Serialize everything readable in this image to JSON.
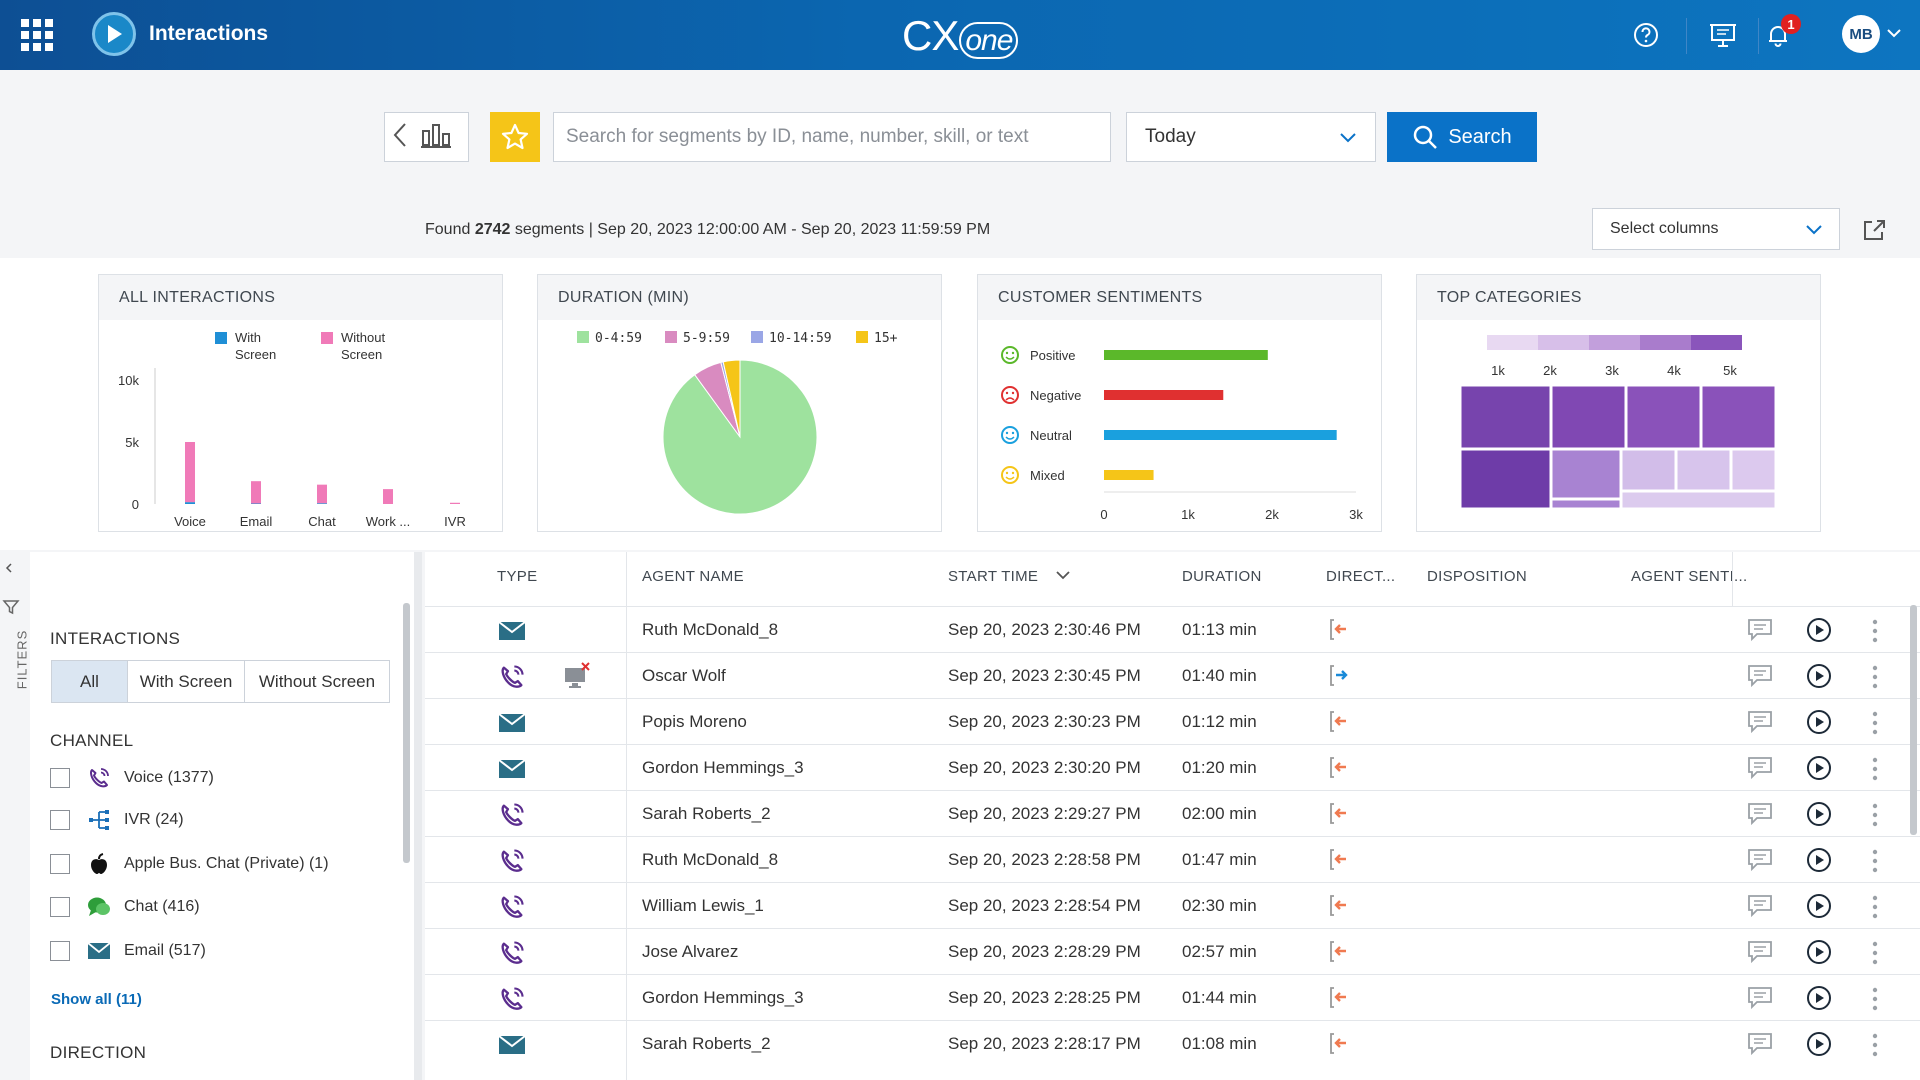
{
  "header": {
    "app_title": "Interactions",
    "brand": "CX",
    "brand_suffix": "one",
    "notification_count": "1",
    "user_initials": "MB"
  },
  "toolbar": {
    "search_placeholder": "Search for segments by ID, name, number, skill, or text",
    "date_range": "Today",
    "search_label": "Search"
  },
  "results": {
    "prefix": "Found",
    "count": "2742",
    "suffix": "segments | Sep 20, 2023 12:00:00 AM - Sep 20, 2023 11:59:59 PM",
    "select_columns": "Select columns"
  },
  "cards": {
    "all_interactions": {
      "title": "ALL INTERACTIONS",
      "chart_data": {
        "type": "bar",
        "categories": [
          "Voice",
          "Email",
          "Chat",
          "Work ...",
          "IVR"
        ],
        "series": [
          {
            "name": "With Screen",
            "values": [
              150,
              40,
              60,
              0,
              0
            ]
          },
          {
            "name": "Without Screen",
            "values": [
              4850,
              1800,
              1500,
              1200,
              100
            ]
          }
        ],
        "legend_with": [
          "With",
          "Screen"
        ],
        "legend_without": [
          "Without",
          "Screen"
        ],
        "y_ticks": [
          "10k",
          "5k",
          "0"
        ],
        "ylim": [
          0,
          10000
        ]
      }
    },
    "duration": {
      "title": "DURATION (MIN)",
      "chart_data": {
        "type": "pie",
        "labels": [
          "0-4:59",
          "5-9:59",
          "10-14:59",
          "15+"
        ],
        "values": [
          90,
          6,
          0.5,
          3.5
        ]
      }
    },
    "sentiments": {
      "title": "CUSTOMER SENTIMENTS",
      "chart_data": {
        "type": "bar",
        "orientation": "horizontal",
        "categories": [
          "Positive",
          "Negative",
          "Neutral",
          "Mixed"
        ],
        "values": [
          1950,
          1420,
          2770,
          590
        ],
        "x_ticks": [
          "0",
          "1k",
          "2k",
          "3k"
        ],
        "xlim": [
          0,
          3000
        ]
      }
    },
    "top_categories": {
      "title": "TOP CATEGORIES",
      "scale": [
        "1k",
        "2k",
        "3k",
        "4k",
        "5k"
      ]
    }
  },
  "filters": {
    "side_label": "FILTERS",
    "interactions_title": "INTERACTIONS",
    "seg_all": "All",
    "seg_with": "With Screen",
    "seg_without": "Without Screen",
    "channel_title": "CHANNEL",
    "channels": [
      {
        "label": "Voice (1377)",
        "icon": "phone-icon"
      },
      {
        "label": "IVR (24)",
        "icon": "ivr-icon"
      },
      {
        "label": "Apple Bus. Chat (Private) (1)",
        "icon": "apple-icon"
      },
      {
        "label": "Chat (416)",
        "icon": "chat-icon"
      },
      {
        "label": "Email (517)",
        "icon": "email-icon"
      }
    ],
    "show_all": "Show all (11)",
    "direction_title": "DIRECTION"
  },
  "table": {
    "columns": {
      "type": "TYPE",
      "agent": "AGENT NAME",
      "start": "START TIME",
      "duration": "DURATION",
      "direction": "DIRECT...",
      "disposition": "DISPOSITION",
      "agent_sentiment": "AGENT SENTI..."
    },
    "rows": [
      {
        "type": "email",
        "agent": "Ruth McDonald_8",
        "start": "Sep 20, 2023 2:30:46 PM",
        "duration": "01:13 min",
        "direction": "in"
      },
      {
        "type": "voice",
        "agent": "Oscar Wolf",
        "start": "Sep 20, 2023 2:30:45 PM",
        "duration": "01:40 min",
        "direction": "out"
      },
      {
        "type": "email",
        "agent": "Popis Moreno",
        "start": "Sep 20, 2023 2:30:23 PM",
        "duration": "01:12 min",
        "direction": "in"
      },
      {
        "type": "email",
        "agent": "Gordon Hemmings_3",
        "start": "Sep 20, 2023 2:30:20 PM",
        "duration": "01:20 min",
        "direction": "in"
      },
      {
        "type": "voice",
        "agent": "Sarah Roberts_2",
        "start": "Sep 20, 2023 2:29:27 PM",
        "duration": "02:00 min",
        "direction": "in"
      },
      {
        "type": "voice",
        "agent": "Ruth McDonald_8",
        "start": "Sep 20, 2023 2:28:58 PM",
        "duration": "01:47 min",
        "direction": "in"
      },
      {
        "type": "voice",
        "agent": "William Lewis_1",
        "start": "Sep 20, 2023 2:28:54 PM",
        "duration": "02:30 min",
        "direction": "in"
      },
      {
        "type": "voice",
        "agent": "Jose Alvarez",
        "start": "Sep 20, 2023 2:28:29 PM",
        "duration": "02:57 min",
        "direction": "in"
      },
      {
        "type": "voice",
        "agent": "Gordon Hemmings_3",
        "start": "Sep 20, 2023 2:28:25 PM",
        "duration": "01:44 min",
        "direction": "in"
      },
      {
        "type": "email",
        "agent": "Sarah Roberts_2",
        "start": "Sep 20, 2023 2:28:17 PM",
        "duration": "01:08 min",
        "direction": "in"
      }
    ]
  },
  "colors": {
    "header_blue": "#0b66b0",
    "accent_blue": "#0a72c8",
    "star_yellow": "#f5c518",
    "with_screen": "#1f8fd6",
    "without_screen": "#f07ab8",
    "positive": "#5bb82a",
    "negative": "#e03030",
    "neutral": "#1aa0de",
    "mixed": "#f5c518",
    "voice_purple": "#5b2d8e",
    "email_teal": "#2a6e86"
  }
}
